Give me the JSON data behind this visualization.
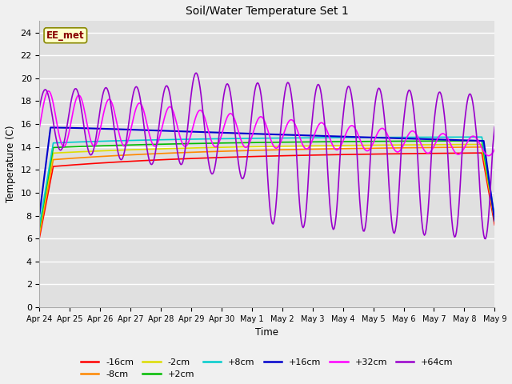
{
  "title": "Soil/Water Temperature Set 1",
  "xlabel": "Time",
  "ylabel": "Temperature (C)",
  "ylim": [
    0,
    25
  ],
  "yticks": [
    0,
    2,
    4,
    6,
    8,
    10,
    12,
    14,
    16,
    18,
    20,
    22,
    24
  ],
  "x_labels": [
    "Apr 24",
    "Apr 25",
    "Apr 26",
    "Apr 27",
    "Apr 28",
    "Apr 29",
    "Apr 30",
    "May 1",
    "May 2",
    "May 3",
    "May 4",
    "May 5",
    "May 6",
    "May 7",
    "May 8",
    "May 9"
  ],
  "fig_bg": "#f0f0f0",
  "plot_bg": "#e0e0e0",
  "annotation_text": "EE_met",
  "annotation_bg": "#ffffcc",
  "annotation_border": "#888800",
  "annotation_text_color": "#880000",
  "legend_entries": [
    "-16cm",
    "-8cm",
    "-2cm",
    "+2cm",
    "+8cm",
    "+16cm",
    "+32cm",
    "+64cm"
  ],
  "line_colors": {
    "-16cm": "#ff0000",
    "-8cm": "#ff8800",
    "-2cm": "#dddd00",
    "+2cm": "#00bb00",
    "+8cm": "#00cccc",
    "+16cm": "#0000cc",
    "+32cm": "#ff00ff",
    "+64cm": "#9900cc"
  }
}
